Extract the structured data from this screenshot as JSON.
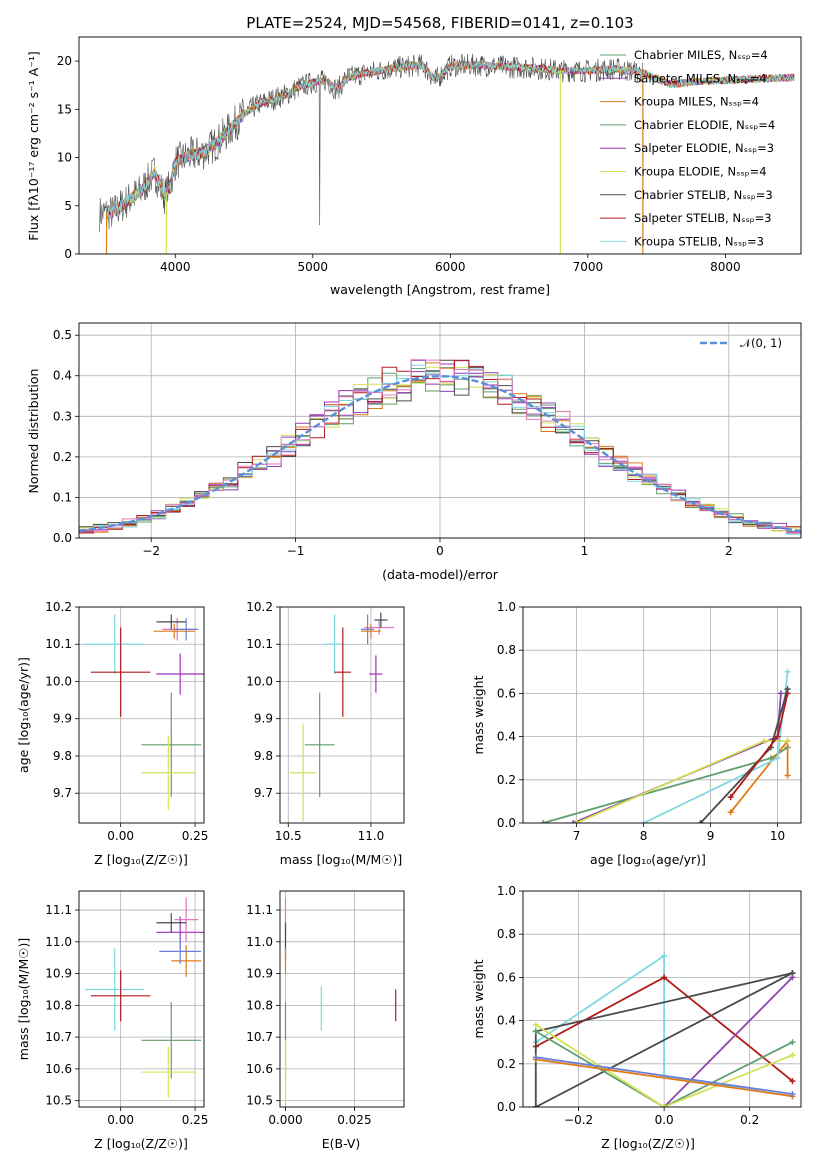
{
  "colors": {
    "c_miles": "#5f9e6e",
    "s_miles": "#8e44ad",
    "k_miles": "#e07b1a",
    "c_elodie": "#5f9e6e",
    "s_elodie": "#9b30b8",
    "k_elodie": "#d4e157",
    "c_stelib": "#4a4a4a",
    "s_stelib": "#b01c1c",
    "k_stelib": "#7fd8e0",
    "normal": "#5b8fd8",
    "pink": "#e377c2",
    "blue": "#6a7fd8"
  },
  "chart_data": [
    {
      "id": "spectrum",
      "type": "line",
      "title": "PLATE=2524, MJD=54568, FIBERID=0141, z=0.103",
      "xlabel": "wavelength [Angstrom, rest frame]",
      "ylabel": "Flux [fλ10⁻¹⁷ erg cm⁻² s⁻¹ A⁻¹]",
      "xlim": [
        3300,
        8550
      ],
      "ylim": [
        0,
        22.5
      ],
      "xticks": [
        "4000",
        "5000",
        "6000",
        "7000",
        "8000"
      ],
      "yticks": [
        "0",
        "5",
        "10",
        "15",
        "20"
      ],
      "continuum": [
        [
          3450,
          4.2
        ],
        [
          3550,
          4.3
        ],
        [
          3650,
          5.5
        ],
        [
          3750,
          6.5
        ],
        [
          3850,
          8.5
        ],
        [
          3920,
          6.0
        ],
        [
          3960,
          7.0
        ],
        [
          4000,
          9.5
        ],
        [
          4100,
          10.2
        ],
        [
          4200,
          10.5
        ],
        [
          4300,
          11.5
        ],
        [
          4400,
          13.0
        ],
        [
          4500,
          14.5
        ],
        [
          4600,
          15.5
        ],
        [
          4700,
          16.0
        ],
        [
          4800,
          16.5
        ],
        [
          4900,
          17.3
        ],
        [
          5000,
          17.8
        ],
        [
          5100,
          18.0
        ],
        [
          5175,
          17.0
        ],
        [
          5250,
          18.3
        ],
        [
          5400,
          18.8
        ],
        [
          5600,
          19.3
        ],
        [
          5800,
          19.6
        ],
        [
          5890,
          18.0
        ],
        [
          6000,
          19.5
        ],
        [
          6200,
          19.6
        ],
        [
          6400,
          19.4
        ],
        [
          6600,
          19.3
        ],
        [
          6800,
          19.0
        ],
        [
          7000,
          19.0
        ],
        [
          7200,
          19.2
        ],
        [
          7400,
          18.8
        ],
        [
          7600,
          17.6
        ],
        [
          7800,
          17.9
        ],
        [
          8000,
          18.0
        ],
        [
          8300,
          18.2
        ],
        [
          8500,
          18.3
        ]
      ],
      "legend": [
        {
          "label": "Chabrier MILES, Nₛₛₚ=4",
          "color": "#5f9e6e"
        },
        {
          "label": "Salpeter MILES, Nₛₛₚ=4",
          "color": "#8e44ad"
        },
        {
          "label": "Kroupa MILES, Nₛₛₚ=4",
          "color": "#e07b1a"
        },
        {
          "label": "Chabrier ELODIE, Nₛₛₚ=4",
          "color": "#5f9e6e"
        },
        {
          "label": "Salpeter ELODIE, Nₛₛₚ=3",
          "color": "#9b30b8"
        },
        {
          "label": "Kroupa ELODIE, Nₛₛₚ=4",
          "color": "#d4e157"
        },
        {
          "label": "Chabrier STELIB, Nₛₛₚ=3",
          "color": "#4a4a4a"
        },
        {
          "label": "Salpeter STELIB, Nₛₛₚ=3",
          "color": "#b01c1c"
        },
        {
          "label": "Kroupa STELIB, Nₛₛₚ=3",
          "color": "#7fd8e0"
        }
      ]
    },
    {
      "id": "residuals",
      "type": "line",
      "xlabel": "(data-model)/error",
      "ylabel": "Normed distribution",
      "xlim": [
        -2.5,
        2.5
      ],
      "ylim": [
        0,
        0.53
      ],
      "xticks": [
        "−2",
        "−1",
        "0",
        "1",
        "2"
      ],
      "yticks": [
        "0.0",
        "0.1",
        "0.2",
        "0.3",
        "0.4",
        "0.5"
      ],
      "legend": "𝒩(0, 1)",
      "legend_position": "top-right",
      "grid": true
    },
    {
      "id": "age_vs_z",
      "type": "scatter",
      "xlabel": "Z [log₁₀(Z/Z☉)]",
      "ylabel": "age  [log₁₀(age/yr)]",
      "xlim": [
        -0.14,
        0.28
      ],
      "ylim": [
        9.62,
        10.2
      ],
      "xticks": [
        "0.00",
        "0.25"
      ],
      "yticks": [
        "9.7",
        "9.8",
        "9.9",
        "10.0",
        "10.1",
        "10.2"
      ],
      "points": [
        {
          "x": -0.02,
          "y": 10.1,
          "xe": 0.1,
          "ye": 0.08,
          "color": "#7fd8e0"
        },
        {
          "x": 0.0,
          "y": 10.025,
          "xe": 0.1,
          "ye": 0.12,
          "color": "#b01c1c"
        },
        {
          "x": 0.17,
          "y": 9.83,
          "xe": 0.1,
          "ye": 0.14,
          "color": "#5f9e6e"
        },
        {
          "x": 0.16,
          "y": 9.755,
          "xe": 0.09,
          "ye": 0.1,
          "color": "#d4e157"
        },
        {
          "x": 0.2,
          "y": 10.02,
          "xe": 0.08,
          "ye": 0.055,
          "color": "#9b30b8"
        },
        {
          "x": 0.19,
          "y": 10.14,
          "xe": 0.05,
          "ye": 0.03,
          "color": "#e377c2"
        },
        {
          "x": 0.18,
          "y": 10.135,
          "xe": 0.07,
          "ye": 0.02,
          "color": "#e07b1a"
        },
        {
          "x": 0.17,
          "y": 10.16,
          "xe": 0.05,
          "ye": 0.02,
          "color": "#4a4a4a"
        },
        {
          "x": 0.22,
          "y": 10.14,
          "xe": 0.04,
          "ye": 0.03,
          "color": "#6a7fd8"
        }
      ]
    },
    {
      "id": "age_vs_mass",
      "type": "scatter",
      "xlabel": "mass [log₁₀(M/M☉)]",
      "xlim": [
        10.45,
        11.2
      ],
      "ylim": [
        9.62,
        10.2
      ],
      "xticks": [
        "10.5",
        "11.0"
      ],
      "yticks": [
        "9.7",
        "9.8",
        "9.9",
        "10.0",
        "10.1",
        "10.2"
      ],
      "points": [
        {
          "x": 10.78,
          "y": 10.1,
          "xe": 0.06,
          "ye": 0.08,
          "color": "#7fd8e0"
        },
        {
          "x": 10.83,
          "y": 10.025,
          "xe": 0.05,
          "ye": 0.12,
          "color": "#b01c1c"
        },
        {
          "x": 10.69,
          "y": 9.83,
          "xe": 0.09,
          "ye": 0.14,
          "color": "#5f9e6e"
        },
        {
          "x": 10.59,
          "y": 9.755,
          "xe": 0.08,
          "ye": 0.13,
          "color": "#d4e157"
        },
        {
          "x": 11.03,
          "y": 10.02,
          "xe": 0.04,
          "ye": 0.05,
          "color": "#9b30b8"
        },
        {
          "x": 11.05,
          "y": 10.145,
          "xe": 0.09,
          "ye": 0.02,
          "color": "#e377c2"
        },
        {
          "x": 11.0,
          "y": 10.135,
          "xe": 0.06,
          "ye": 0.02,
          "color": "#e07b1a"
        },
        {
          "x": 11.06,
          "y": 10.165,
          "xe": 0.04,
          "ye": 0.02,
          "color": "#4a4a4a"
        },
        {
          "x": 10.98,
          "y": 10.14,
          "xe": 0.04,
          "ye": 0.04,
          "color": "#6a7fd8"
        }
      ]
    },
    {
      "id": "mw_vs_age",
      "type": "line",
      "xlabel": "age  [log₁₀(age/yr)]",
      "ylabel": "mass weight",
      "xlim": [
        6.2,
        10.35
      ],
      "ylim": [
        0,
        1.0
      ],
      "xticks": [
        "7",
        "8",
        "9",
        "10"
      ],
      "yticks": [
        "0.0",
        "0.2",
        "0.4",
        "0.6",
        "0.8",
        "1.0"
      ],
      "series": [
        {
          "color": "#5f9e6e",
          "points": [
            [
              6.5,
              0.0
            ],
            [
              9.9,
              0.3
            ],
            [
              10.15,
              0.35
            ]
          ]
        },
        {
          "color": "#8e44ad",
          "points": [
            [
              6.95,
              0.0
            ],
            [
              10.0,
              0.4
            ],
            [
              10.05,
              0.6
            ]
          ]
        },
        {
          "color": "#e07b1a",
          "points": [
            [
              9.3,
              0.05
            ],
            [
              10.15,
              0.38
            ],
            [
              10.15,
              0.22
            ]
          ]
        },
        {
          "color": "#d4e157",
          "points": [
            [
              7.0,
              0.0
            ],
            [
              9.8,
              0.38
            ],
            [
              10.15,
              0.38
            ]
          ]
        },
        {
          "color": "#7fd8e0",
          "points": [
            [
              8.0,
              0.0
            ],
            [
              10.0,
              0.3
            ],
            [
              10.15,
              0.7
            ]
          ]
        },
        {
          "color": "#4a4a4a",
          "points": [
            [
              8.85,
              0.0
            ],
            [
              9.9,
              0.35
            ],
            [
              10.15,
              0.62
            ]
          ]
        },
        {
          "color": "#b01c1c",
          "points": [
            [
              9.3,
              0.12
            ],
            [
              10.0,
              0.4
            ],
            [
              10.15,
              0.6
            ]
          ]
        }
      ]
    },
    {
      "id": "mass_vs_z",
      "type": "scatter",
      "xlabel": "Z [log₁₀(Z/Z☉)]",
      "ylabel": "mass [log₁₀(M/M☉)]",
      "xlim": [
        -0.14,
        0.28
      ],
      "ylim": [
        10.48,
        11.16
      ],
      "xticks": [
        "0.00",
        "0.25"
      ],
      "yticks": [
        "10.5",
        "10.6",
        "10.7",
        "10.8",
        "10.9",
        "11.0",
        "11.1"
      ],
      "points": [
        {
          "x": -0.02,
          "y": 10.85,
          "xe": 0.1,
          "ye": 0.13,
          "color": "#7fd8e0"
        },
        {
          "x": 0.0,
          "y": 10.83,
          "xe": 0.1,
          "ye": 0.08,
          "color": "#b01c1c"
        },
        {
          "x": 0.17,
          "y": 10.69,
          "xe": 0.1,
          "ye": 0.12,
          "color": "#5f9e6e"
        },
        {
          "x": 0.16,
          "y": 10.59,
          "xe": 0.09,
          "ye": 0.08,
          "color": "#d4e157"
        },
        {
          "x": 0.2,
          "y": 11.03,
          "xe": 0.08,
          "ye": 0.05,
          "color": "#9b30b8"
        },
        {
          "x": 0.22,
          "y": 11.07,
          "xe": 0.04,
          "ye": 0.07,
          "color": "#e377c2"
        },
        {
          "x": 0.22,
          "y": 10.94,
          "xe": 0.05,
          "ye": 0.05,
          "color": "#e07b1a"
        },
        {
          "x": 0.17,
          "y": 11.06,
          "xe": 0.05,
          "ye": 0.03,
          "color": "#4a4a4a"
        },
        {
          "x": 0.2,
          "y": 10.97,
          "xe": 0.07,
          "ye": 0.04,
          "color": "#6a7fd8"
        }
      ]
    },
    {
      "id": "mass_vs_ebv",
      "type": "scatter",
      "xlabel": "E(B-V)",
      "xlim": [
        -0.002,
        0.043
      ],
      "ylim": [
        10.48,
        11.16
      ],
      "xticks": [
        "0.000",
        "0.025"
      ],
      "yticks": [
        "10.5",
        "10.6",
        "10.7",
        "10.8",
        "10.9",
        "11.0",
        "11.1"
      ],
      "points": [
        {
          "x": 0.0,
          "y": 11.07,
          "xe": 0,
          "ye": 0.07,
          "color": "#e377c2"
        },
        {
          "x": 0.0,
          "y": 11.0,
          "xe": 0,
          "ye": 0.06,
          "color": "#4a4a4a"
        },
        {
          "x": 0.0,
          "y": 10.94,
          "xe": 0,
          "ye": 0.04,
          "color": "#e07b1a"
        },
        {
          "x": 0.0,
          "y": 10.69,
          "xe": 0,
          "ye": 0.12,
          "color": "#5f9e6e"
        },
        {
          "x": 0.0,
          "y": 10.59,
          "xe": 0,
          "ye": 0.1,
          "color": "#d4e157"
        },
        {
          "x": 0.013,
          "y": 10.79,
          "xe": 0,
          "ye": 0.07,
          "color": "#7fd8e0"
        },
        {
          "x": 0.04,
          "y": 10.8,
          "xe": 0,
          "ye": 0.05,
          "color": "#b01c1c"
        }
      ]
    },
    {
      "id": "mw_vs_z",
      "type": "line",
      "xlabel": "Z [log₁₀(Z/Z☉)]",
      "ylabel": "mass weight",
      "xlim": [
        -0.33,
        0.32
      ],
      "ylim": [
        0,
        1.0
      ],
      "xticks": [
        "−0.2",
        "0.0",
        "0.2"
      ],
      "yticks": [
        "0.0",
        "0.2",
        "0.4",
        "0.6",
        "0.8",
        "1.0"
      ],
      "series": [
        {
          "color": "#7fd8e0",
          "points": [
            [
              -0.3,
              0.3
            ],
            [
              0.0,
              0.7
            ],
            [
              0.0,
              0.14
            ],
            [
              0.3,
              0.05
            ]
          ]
        },
        {
          "color": "#b01c1c",
          "points": [
            [
              -0.3,
              0.28
            ],
            [
              0.0,
              0.6
            ],
            [
              0.3,
              0.12
            ]
          ]
        },
        {
          "color": "#4a4a4a",
          "points": [
            [
              -0.3,
              0.0
            ],
            [
              -0.3,
              0.35
            ],
            [
              0.3,
              0.62
            ]
          ]
        },
        {
          "color": "#4a4a4a",
          "points": [
            [
              -0.3,
              0.0
            ],
            [
              0.3,
              0.62
            ]
          ]
        },
        {
          "color": "#8e44ad",
          "points": [
            [
              0.0,
              0.0
            ],
            [
              0.3,
              0.6
            ]
          ]
        },
        {
          "color": "#5f9e6e",
          "points": [
            [
              -0.3,
              0.35
            ],
            [
              0.0,
              0.0
            ],
            [
              0.3,
              0.3
            ]
          ]
        },
        {
          "color": "#d4e157",
          "points": [
            [
              -0.3,
              0.38
            ],
            [
              0.0,
              0.0
            ],
            [
              0.3,
              0.24
            ]
          ]
        },
        {
          "color": "#e07b1a",
          "points": [
            [
              -0.3,
              0.22
            ],
            [
              0.3,
              0.05
            ]
          ]
        },
        {
          "color": "#6a7fd8",
          "points": [
            [
              -0.3,
              0.23
            ],
            [
              0.3,
              0.06
            ]
          ]
        }
      ]
    }
  ]
}
